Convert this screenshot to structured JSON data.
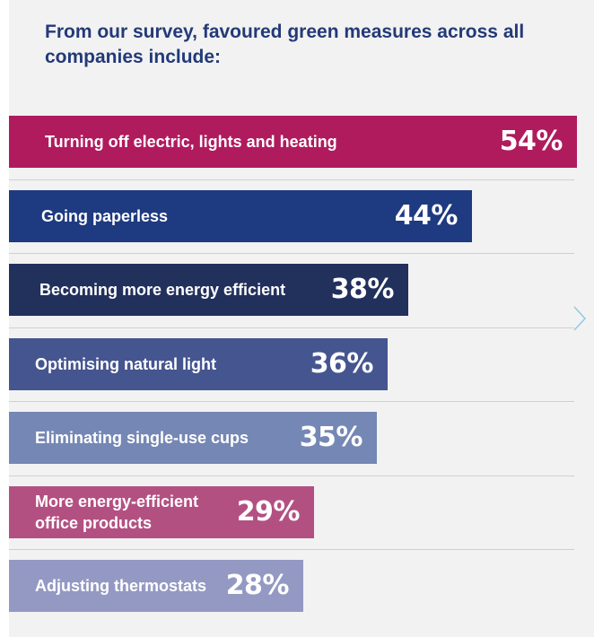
{
  "chart_data": {
    "type": "bar",
    "orientation": "horizontal",
    "title": "From our survey, favoured green measures across all companies include:",
    "unit": "%",
    "categories": [
      "Turning off electric, lights and heating",
      "Going paperless",
      "Becoming more energy efficient",
      "Optimising natural light",
      "Eliminating single-use cups",
      "More energy-efficient\noffice products",
      "Adjusting thermostats"
    ],
    "values": [
      54,
      44,
      38,
      36,
      35,
      29,
      28
    ],
    "value_labels": [
      "54%",
      "44%",
      "38%",
      "36%",
      "35%",
      "29%",
      "28%"
    ],
    "colors": [
      "#b01b5e",
      "#1e3a80",
      "#22305c",
      "#45558f",
      "#7587b4",
      "#b35082",
      "#9499c3"
    ],
    "grid": false,
    "legend": "none"
  },
  "navigation": {
    "next_icon": "chevron-right-icon",
    "color": "#8fc9e4"
  }
}
